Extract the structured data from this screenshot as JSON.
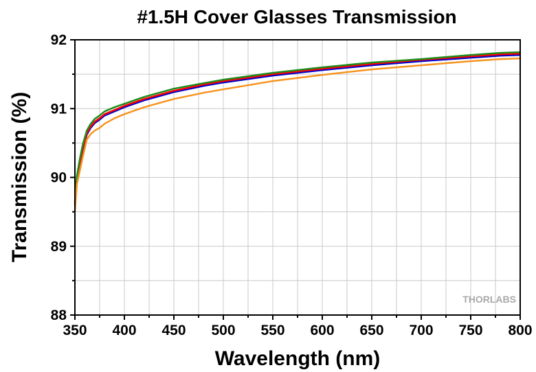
{
  "chart_data": {
    "type": "line",
    "title": "#1.5H Cover Glasses Transmission",
    "xlabel": "Wavelength (nm)",
    "ylabel": "Transmission (%)",
    "xlim": [
      350,
      800
    ],
    "ylim": [
      88,
      92
    ],
    "xticks": [
      350,
      400,
      450,
      500,
      550,
      600,
      650,
      700,
      750,
      800
    ],
    "yticks": [
      88,
      89,
      90,
      91,
      92
    ],
    "grid": true,
    "legend": "none",
    "watermark": "THORLABS",
    "series": [
      {
        "color": "#0000cc",
        "x": [
          350,
          352,
          355,
          358,
          362,
          366,
          370,
          375,
          380,
          390,
          400,
          420,
          450,
          480,
          500,
          550,
          600,
          650,
          700,
          750,
          780,
          800
        ],
        "y": [
          89.6,
          89.95,
          90.2,
          90.4,
          90.62,
          90.72,
          90.79,
          90.84,
          90.9,
          90.96,
          91.02,
          91.12,
          91.24,
          91.33,
          91.38,
          91.48,
          91.56,
          91.63,
          91.69,
          91.74,
          91.77,
          91.78
        ]
      },
      {
        "color": "#ff0000",
        "x": [
          350,
          352,
          355,
          358,
          362,
          366,
          370,
          375,
          380,
          390,
          400,
          420,
          450,
          480,
          500,
          550,
          600,
          650,
          700,
          750,
          780,
          800
        ],
        "y": [
          89.62,
          89.97,
          90.22,
          90.43,
          90.64,
          90.74,
          90.81,
          90.86,
          90.92,
          90.98,
          91.04,
          91.14,
          91.26,
          91.35,
          91.4,
          91.5,
          91.58,
          91.65,
          91.71,
          91.76,
          91.79,
          91.8
        ]
      },
      {
        "color": "#1e8c1e",
        "x": [
          350,
          352,
          355,
          358,
          362,
          366,
          370,
          375,
          380,
          390,
          400,
          420,
          450,
          480,
          500,
          550,
          600,
          650,
          700,
          750,
          780,
          800
        ],
        "y": [
          89.65,
          90.02,
          90.27,
          90.48,
          90.68,
          90.78,
          90.85,
          90.9,
          90.96,
          91.02,
          91.07,
          91.17,
          91.29,
          91.37,
          91.42,
          91.52,
          91.6,
          91.67,
          91.72,
          91.78,
          91.81,
          91.82
        ]
      },
      {
        "color": "#f7931e",
        "x": [
          350,
          352,
          355,
          358,
          362,
          366,
          370,
          375,
          380,
          390,
          400,
          420,
          450,
          480,
          500,
          550,
          600,
          650,
          700,
          750,
          780,
          800
        ],
        "y": [
          89.5,
          89.9,
          90.1,
          90.3,
          90.55,
          90.63,
          90.68,
          90.72,
          90.78,
          90.86,
          90.92,
          91.02,
          91.14,
          91.23,
          91.28,
          91.4,
          91.49,
          91.57,
          91.63,
          91.69,
          91.72,
          91.73
        ]
      }
    ]
  }
}
